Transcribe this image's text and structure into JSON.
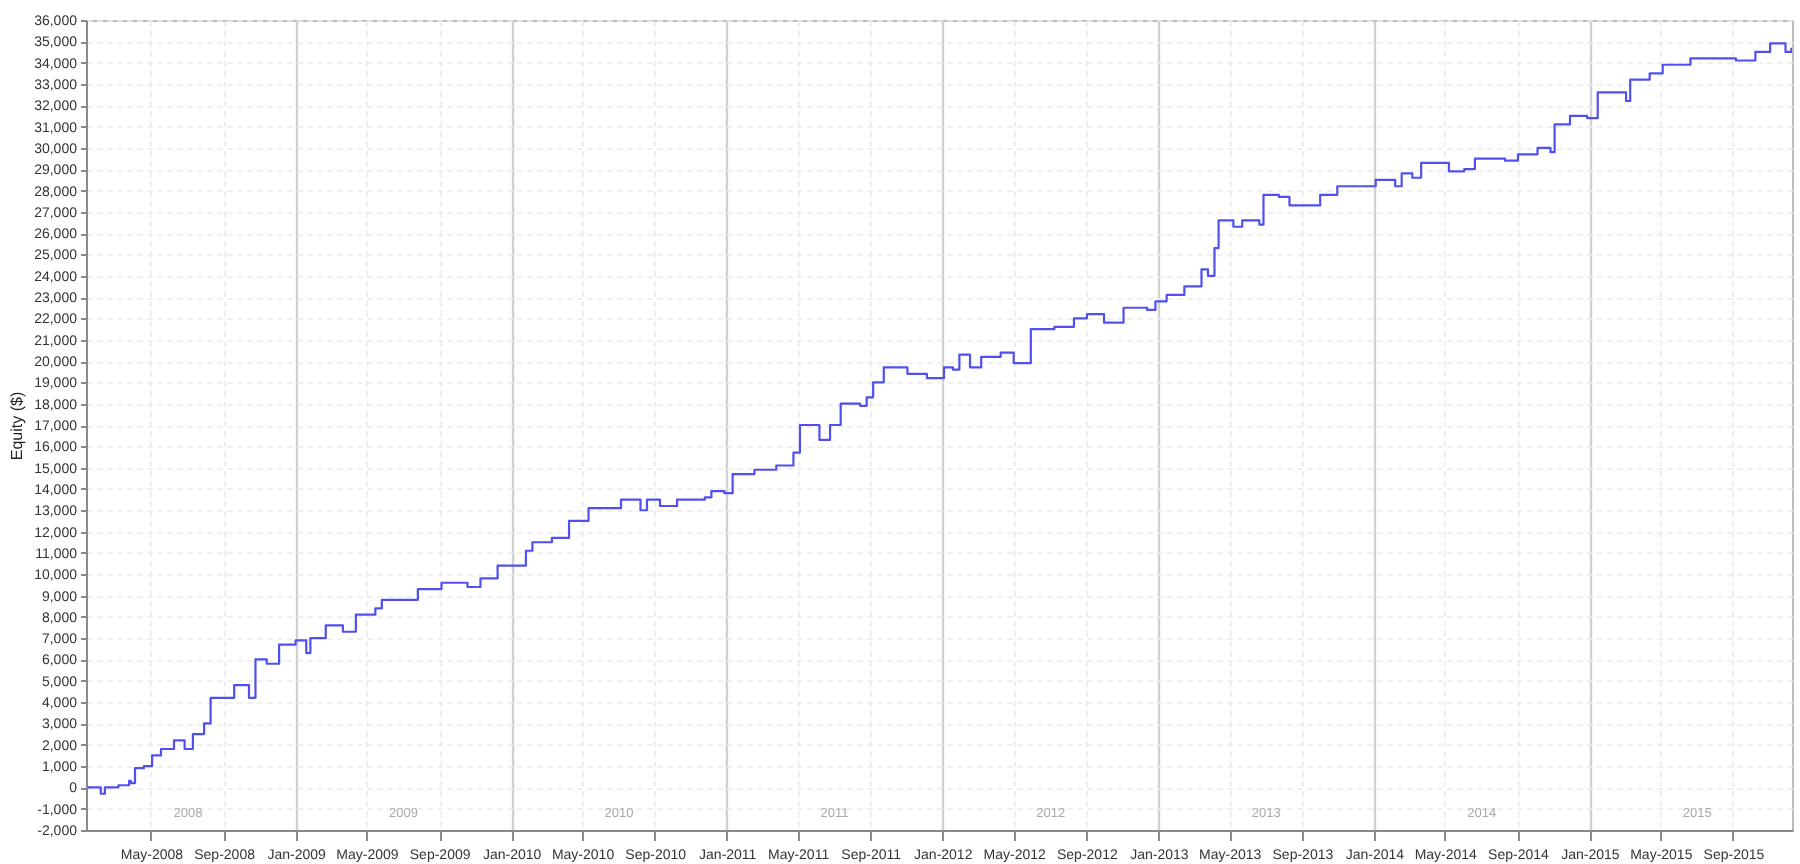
{
  "chart_data": {
    "type": "step",
    "ylabel": "Equity ($)",
    "grid": true,
    "xlim": [
      "2008-01-12",
      "2015-12-10"
    ],
    "ylim": [
      -2000,
      36000
    ],
    "yticks": [
      {
        "value": -2000,
        "label": "-2,000"
      },
      {
        "value": -1000,
        "label": "-1,000"
      },
      0,
      {
        "value": 1000,
        "label": "1,000"
      },
      {
        "value": 2000,
        "label": "2,000"
      },
      {
        "value": 3000,
        "label": "3,000"
      },
      {
        "value": 4000,
        "label": "4,000"
      },
      {
        "value": 5000,
        "label": "5,000"
      },
      {
        "value": 6000,
        "label": "6,000"
      },
      {
        "value": 7000,
        "label": "7,000"
      },
      {
        "value": 8000,
        "label": "8,000"
      },
      {
        "value": 9000,
        "label": "9,000"
      },
      {
        "value": 10000,
        "label": "10,000"
      },
      {
        "value": 11000,
        "label": "11,000"
      },
      {
        "value": 12000,
        "label": "12,000"
      },
      {
        "value": 13000,
        "label": "13,000"
      },
      {
        "value": 14000,
        "label": "14,000"
      },
      {
        "value": 15000,
        "label": "15,000"
      },
      {
        "value": 16000,
        "label": "16,000"
      },
      {
        "value": 17000,
        "label": "17,000"
      },
      {
        "value": 18000,
        "label": "18,000"
      },
      {
        "value": 19000,
        "label": "19,000"
      },
      {
        "value": 20000,
        "label": "20,000"
      },
      {
        "value": 21000,
        "label": "21,000"
      },
      {
        "value": 22000,
        "label": "22,000"
      },
      {
        "value": 23000,
        "label": "23,000"
      },
      {
        "value": 24000,
        "label": "24,000"
      },
      {
        "value": 25000,
        "label": "25,000"
      },
      {
        "value": 26000,
        "label": "26,000"
      },
      {
        "value": 27000,
        "label": "27,000"
      },
      {
        "value": 28000,
        "label": "28,000"
      },
      {
        "value": 29000,
        "label": "29,000"
      },
      {
        "value": 30000,
        "label": "30,000"
      },
      {
        "value": 31000,
        "label": "31,000"
      },
      {
        "value": 32000,
        "label": "32,000"
      },
      {
        "value": 33000,
        "label": "33,000"
      },
      {
        "value": 34000,
        "label": "34,000"
      },
      {
        "value": 35000,
        "label": "35,000"
      },
      {
        "value": 36000,
        "label": "36,000"
      }
    ],
    "xticks": [
      {
        "value": "2008-05-01",
        "label": "May-2008"
      },
      {
        "value": "2008-09-01",
        "label": "Sep-2008"
      },
      {
        "value": "2009-01-01",
        "label": "Jan-2009"
      },
      {
        "value": "2009-05-01",
        "label": "May-2009"
      },
      {
        "value": "2009-09-01",
        "label": "Sep-2009"
      },
      {
        "value": "2010-01-01",
        "label": "Jan-2010"
      },
      {
        "value": "2010-05-01",
        "label": "May-2010"
      },
      {
        "value": "2010-09-01",
        "label": "Sep-2010"
      },
      {
        "value": "2011-01-01",
        "label": "Jan-2011"
      },
      {
        "value": "2011-05-01",
        "label": "May-2011"
      },
      {
        "value": "2011-09-01",
        "label": "Sep-2011"
      },
      {
        "value": "2012-01-01",
        "label": "Jan-2012"
      },
      {
        "value": "2012-05-01",
        "label": "May-2012"
      },
      {
        "value": "2012-09-01",
        "label": "Sep-2012"
      },
      {
        "value": "2013-01-01",
        "label": "Jan-2013"
      },
      {
        "value": "2013-05-01",
        "label": "May-2013"
      },
      {
        "value": "2013-09-01",
        "label": "Sep-2013"
      },
      {
        "value": "2014-01-01",
        "label": "Jan-2014"
      },
      {
        "value": "2014-05-01",
        "label": "May-2014"
      },
      {
        "value": "2014-09-01",
        "label": "Sep-2014"
      },
      {
        "value": "2015-01-01",
        "label": "Jan-2015"
      },
      {
        "value": "2015-05-01",
        "label": "May-2015"
      },
      {
        "value": "2015-09-01",
        "label": "Sep-2015"
      }
    ],
    "x2lim": [
      "2008-01-12",
      "2015-12-10"
    ],
    "x2ticks": [
      {
        "value": "2008-07-01",
        "label": "2008"
      },
      {
        "value": "2009-07-01",
        "label": "2009"
      },
      {
        "value": "2010-07-01",
        "label": "2010"
      },
      {
        "value": "2011-07-01",
        "label": "2011"
      },
      {
        "value": "2012-07-01",
        "label": "2012"
      },
      {
        "value": "2013-07-01",
        "label": "2013"
      },
      {
        "value": "2014-07-01",
        "label": "2014"
      },
      {
        "value": "2015-07-01",
        "label": "2015"
      }
    ],
    "series": [
      {
        "color": "#5050f0",
        "x": [
          "2008-01-15",
          "2008-02-06",
          "2008-02-13",
          "2008-03-07",
          "2008-03-25",
          "2008-03-28",
          "2008-04-04",
          "2008-04-19",
          "2008-05-03",
          "2008-05-18",
          "2008-06-09",
          "2008-06-27",
          "2008-07-11",
          "2008-07-30",
          "2008-08-10",
          "2008-08-28",
          "2008-09-19",
          "2008-10-14",
          "2008-10-25",
          "2008-11-13",
          "2008-12-04",
          "2009-01-01",
          "2009-01-19",
          "2009-01-26",
          "2009-02-21",
          "2009-03-22",
          "2009-04-13",
          "2009-05-16",
          "2009-05-27",
          "2009-07-09",
          "2009-07-27",
          "2009-09-05",
          "2009-10-19",
          "2009-11-10",
          "2009-11-28",
          "2009-12-09",
          "2010-01-15",
          "2010-01-26",
          "2010-02-06",
          "2010-03-11",
          "2010-04-09",
          "2010-04-24",
          "2010-05-12",
          "2010-07-06",
          "2010-08-08",
          "2010-08-19",
          "2010-09-10",
          "2010-10-09",
          "2010-11-25",
          "2010-12-06",
          "2010-12-28",
          "2011-01-11",
          "2011-02-17",
          "2011-03-26",
          "2011-04-24",
          "2011-05-05",
          "2011-06-07",
          "2011-06-25",
          "2011-07-13",
          "2011-08-15",
          "2011-08-26",
          "2011-09-06",
          "2011-09-24",
          "2011-11-03",
          "2011-12-06",
          "2012-01-04",
          "2012-01-19",
          "2012-01-30",
          "2012-02-17",
          "2012-03-07",
          "2012-04-09",
          "2012-05-01",
          "2012-05-30",
          "2012-07-09",
          "2012-08-11",
          "2012-09-02",
          "2012-10-01",
          "2012-11-03",
          "2012-12-13",
          "2012-12-27",
          "2013-01-15",
          "2013-02-14",
          "2013-03-15",
          "2013-03-26",
          "2013-04-06",
          "2013-04-13",
          "2013-05-08",
          "2013-05-23",
          "2013-06-21",
          "2013-06-28",
          "2013-07-24",
          "2013-08-11",
          "2013-10-02",
          "2013-10-31",
          "2013-12-21",
          "2014-01-04",
          "2014-02-06",
          "2014-02-17",
          "2014-03-07",
          "2014-03-22",
          "2014-04-16",
          "2014-05-08",
          "2014-06-03",
          "2014-06-21",
          "2014-08-11",
          "2014-09-02",
          "2014-10-05",
          "2014-10-27",
          "2014-11-03",
          "2014-11-29",
          "2014-12-28",
          "2015-01-15",
          "2015-02-17",
          "2015-03-04",
          "2015-03-11",
          "2015-04-13",
          "2015-05-05",
          "2015-06-21",
          "2015-08-04",
          "2015-09-06",
          "2015-10-09",
          "2015-11-03",
          "2015-11-29",
          "2015-12-09"
        ],
        "values": [
          0,
          -300,
          0,
          100,
          300,
          200,
          900,
          1000,
          1500,
          1800,
          2200,
          1800,
          2500,
          3000,
          4200,
          4200,
          4800,
          4200,
          6000,
          5800,
          6700,
          6900,
          6300,
          7000,
          7600,
          7300,
          8100,
          8400,
          8800,
          8800,
          9300,
          9600,
          9400,
          9800,
          9800,
          10400,
          10400,
          11100,
          11500,
          11700,
          12500,
          12500,
          13100,
          13500,
          13000,
          13500,
          13200,
          13500,
          13600,
          13900,
          13800,
          14700,
          14900,
          15100,
          15700,
          17000,
          16300,
          17000,
          18000,
          17900,
          18300,
          19000,
          19700,
          19400,
          19200,
          19700,
          19600,
          20300,
          19700,
          20200,
          20400,
          19900,
          21500,
          21600,
          22000,
          22200,
          21800,
          22500,
          22400,
          22800,
          23100,
          23500,
          24300,
          24000,
          25300,
          26600,
          26300,
          26600,
          26400,
          27800,
          27700,
          27300,
          27800,
          28200,
          28200,
          28500,
          28200,
          28800,
          28600,
          29300,
          29300,
          28900,
          29000,
          29500,
          29400,
          29700,
          30000,
          29800,
          31100,
          31500,
          31400,
          32600,
          32600,
          32200,
          33200,
          33500,
          33900,
          34200,
          34200,
          34100,
          34500,
          34900,
          34500,
          34700
        ]
      }
    ]
  }
}
